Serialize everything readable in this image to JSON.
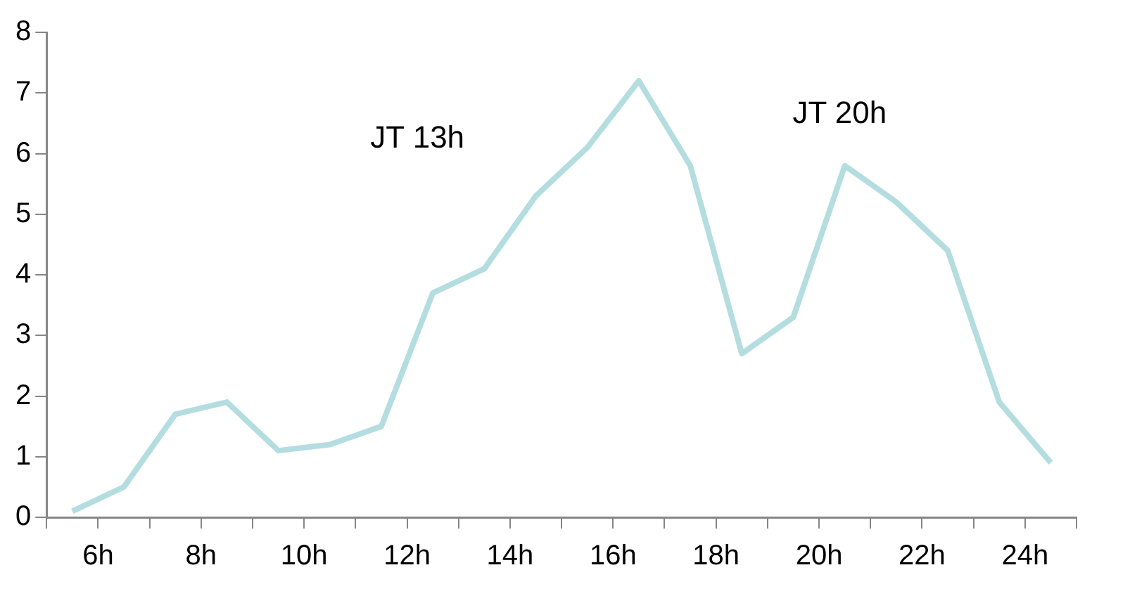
{
  "chart_data": {
    "type": "line",
    "x": [
      5.5,
      6.5,
      7.5,
      8.5,
      9.5,
      10.5,
      11.5,
      12.5,
      13.5,
      14.5,
      15.5,
      16.5,
      17.5,
      18.5,
      19.5,
      20.5,
      21.5,
      22.5,
      23.5,
      24.5
    ],
    "series": [
      {
        "color": "#b4dde0",
        "values": [
          0.1,
          0.5,
          1.7,
          1.9,
          1.1,
          1.2,
          1.5,
          3.7,
          4.1,
          5.3,
          6.1,
          7.2,
          5.8,
          2.7,
          3.3,
          5.8,
          5.2,
          4.4,
          1.9,
          0.9
        ]
      }
    ],
    "xlim": [
      5,
      25
    ],
    "xticks": [
      {
        "value": 5,
        "label": null
      },
      {
        "value": 6,
        "label": "6h"
      },
      {
        "value": 7,
        "label": null
      },
      {
        "value": 8,
        "label": "8h"
      },
      {
        "value": 9,
        "label": null
      },
      {
        "value": 10,
        "label": "10h"
      },
      {
        "value": 11,
        "label": null
      },
      {
        "value": 12,
        "label": "12h"
      },
      {
        "value": 13,
        "label": null
      },
      {
        "value": 14,
        "label": "14h"
      },
      {
        "value": 15,
        "label": null
      },
      {
        "value": 16,
        "label": "16h"
      },
      {
        "value": 17,
        "label": null
      },
      {
        "value": 18,
        "label": "18h"
      },
      {
        "value": 19,
        "label": null
      },
      {
        "value": 20,
        "label": "20h"
      },
      {
        "value": 21,
        "label": null
      },
      {
        "value": 22,
        "label": "22h"
      },
      {
        "value": 23,
        "label": null
      },
      {
        "value": 24,
        "label": "24h"
      },
      {
        "value": 25,
        "label": null
      }
    ],
    "ylim": [
      0,
      8
    ],
    "yticks": [
      0,
      1,
      2,
      3,
      4,
      5,
      6,
      7,
      8
    ],
    "annotations": [
      "JT 13h",
      "JT 20h"
    ],
    "grid": false,
    "legend": false,
    "marker": "none",
    "line_style": "solid"
  }
}
